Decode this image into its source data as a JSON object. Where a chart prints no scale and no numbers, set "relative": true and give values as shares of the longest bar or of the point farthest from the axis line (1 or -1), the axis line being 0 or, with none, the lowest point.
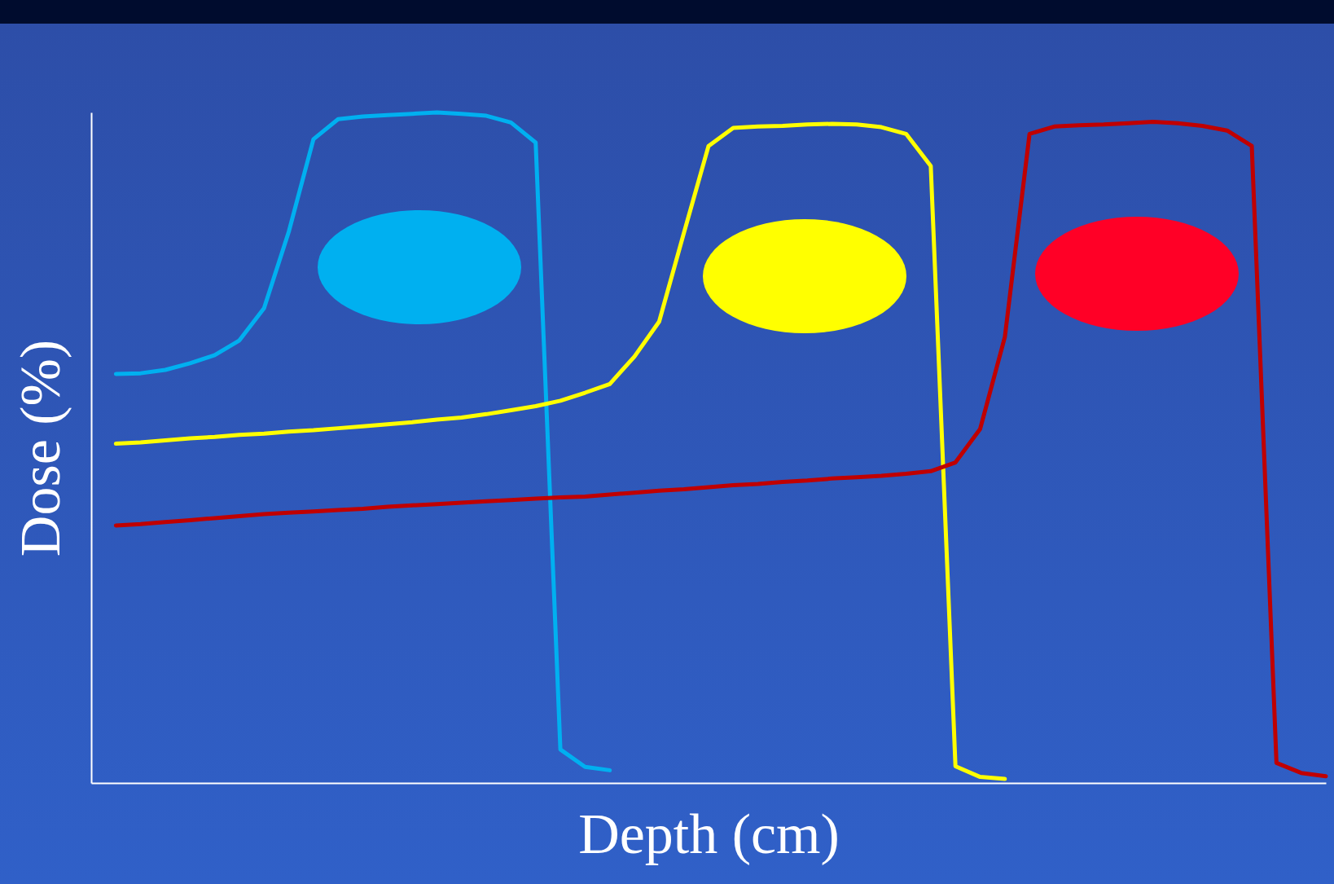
{
  "chart_data": {
    "type": "line",
    "relative": true,
    "xlabel": "Depth (cm)",
    "ylabel": "Dose (%)",
    "legend": false,
    "grid": false,
    "marker": "none",
    "line_style": "solid",
    "categories": [
      null,
      null,
      null,
      null,
      null,
      null,
      null,
      null,
      null,
      null,
      null,
      null,
      null,
      null,
      null,
      null,
      null,
      null,
      null,
      null,
      null,
      null,
      null,
      null,
      null,
      null,
      null,
      null,
      null,
      null,
      null,
      null,
      null,
      null,
      null,
      null,
      null,
      null,
      null,
      null,
      null,
      null,
      null,
      null,
      null,
      null,
      null,
      null,
      null,
      null,
      null
    ],
    "series": [
      {
        "color": "#00b0f0",
        "values": [
          null,
          0.61,
          0.611,
          0.616,
          0.626,
          0.638,
          0.66,
          0.708,
          0.822,
          0.96,
          0.99,
          0.994,
          0.996,
          0.998,
          1.0,
          0.998,
          0.995,
          0.985,
          0.955,
          0.05,
          0.024,
          0.019,
          null,
          null,
          null,
          null,
          null,
          null,
          null,
          null,
          null,
          null,
          null,
          null,
          null,
          null,
          null,
          null,
          null,
          null,
          null,
          null,
          null,
          null,
          null,
          null,
          null,
          null,
          null,
          null,
          null
        ]
      },
      {
        "color": "#ffff00",
        "values": [
          null,
          0.506,
          0.508,
          0.511,
          0.514,
          0.516,
          0.519,
          0.521,
          0.524,
          0.526,
          0.529,
          0.532,
          0.535,
          0.538,
          0.542,
          0.545,
          0.55,
          0.556,
          0.562,
          0.57,
          0.582,
          0.595,
          0.636,
          0.688,
          0.82,
          0.95,
          0.977,
          0.979,
          0.98,
          0.982,
          0.983,
          0.982,
          0.978,
          0.968,
          0.92,
          0.025,
          0.009,
          0.006,
          null,
          null,
          null,
          null,
          null,
          null,
          null,
          null,
          null,
          null,
          null,
          null,
          null
        ]
      },
      {
        "color": "#c00000",
        "values": [
          null,
          0.384,
          0.386,
          0.389,
          0.392,
          0.395,
          0.398,
          0.401,
          0.403,
          0.405,
          0.407,
          0.409,
          0.412,
          0.414,
          0.416,
          0.418,
          0.42,
          0.422,
          0.424,
          0.426,
          0.427,
          0.43,
          0.433,
          0.436,
          0.438,
          0.441,
          0.444,
          0.446,
          0.449,
          0.451,
          0.454,
          0.456,
          0.458,
          0.461,
          0.465,
          0.478,
          0.528,
          0.665,
          0.968,
          0.979,
          0.981,
          0.982,
          0.984,
          0.986,
          0.984,
          0.98,
          0.973,
          0.95,
          0.03,
          0.015,
          0.01
        ]
      }
    ]
  }
}
